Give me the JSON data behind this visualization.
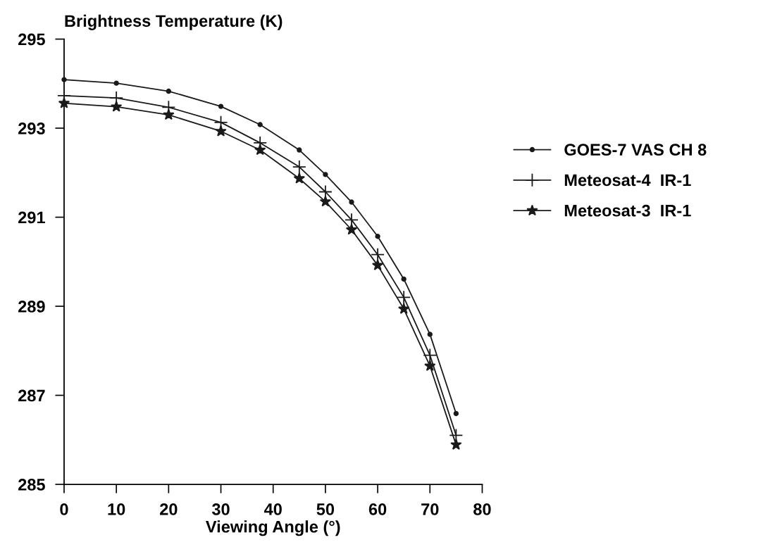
{
  "chart_data": {
    "type": "line",
    "ylabel": "Brightness Temperature (K)",
    "xlabel": "Viewing Angle (°)",
    "x": [
      0,
      10,
      20,
      30,
      37.5,
      45,
      50,
      55,
      60,
      65,
      70,
      75
    ],
    "series": [
      {
        "name": "GOES-7 VAS CH 8",
        "color": "#1a1a1a",
        "marker": "circle",
        "values": [
          294.09,
          294.01,
          293.83,
          293.49,
          293.08,
          292.51,
          291.96,
          291.34,
          290.57,
          289.61,
          288.37,
          286.59
        ]
      },
      {
        "name": "Meteosat-4  IR-1",
        "color": "#1a1a1a",
        "marker": "cross",
        "values": [
          293.73,
          293.68,
          293.47,
          293.13,
          292.67,
          292.13,
          291.57,
          290.94,
          290.16,
          289.2,
          287.9,
          286.1
        ]
      },
      {
        "name": "Meteosat-3  IR-1",
        "color": "#1a1a1a",
        "marker": "star",
        "values": [
          293.56,
          293.48,
          293.3,
          292.93,
          292.51,
          291.87,
          291.35,
          290.72,
          289.92,
          288.94,
          287.66,
          285.89
        ]
      }
    ],
    "xlim": [
      0,
      80
    ],
    "xticks": [
      0,
      10,
      20,
      30,
      40,
      50,
      60,
      70,
      80
    ],
    "ylim": [
      285,
      295
    ],
    "yticks": [
      285,
      287,
      289,
      291,
      293,
      295
    ],
    "grid": false,
    "legend": "right"
  }
}
